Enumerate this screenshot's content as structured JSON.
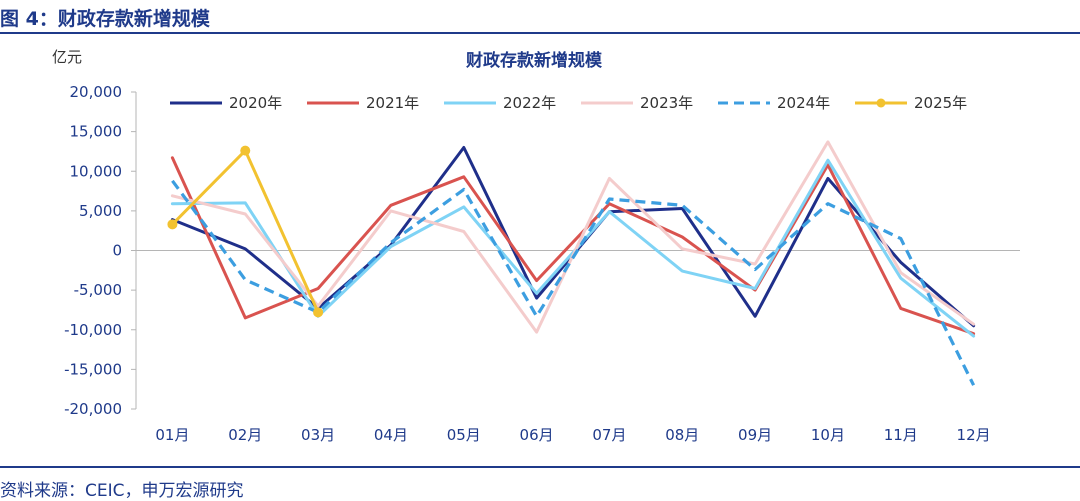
{
  "figure": {
    "title": "图 4：财政存款新增规模",
    "source": "资料来源：CEIC，申万宏源研究"
  },
  "chart_data": {
    "type": "line",
    "title": "财政存款新增规模",
    "unit_label": "亿元",
    "ylim": [
      -20000,
      20000
    ],
    "yticks": [
      20000,
      15000,
      10000,
      5000,
      0,
      -5000,
      -10000,
      -15000,
      -20000
    ],
    "ytick_labels": [
      "20,000",
      "15,000",
      "10,000",
      "5,000",
      "0",
      "-5,000",
      "-10,000",
      "-15,000",
      "-20,000"
    ],
    "categories": [
      "01月",
      "02月",
      "03月",
      "04月",
      "05月",
      "06月",
      "07月",
      "08月",
      "09月",
      "10月",
      "11月",
      "12月"
    ],
    "legend_position": "top",
    "grid": false,
    "series": [
      {
        "name": "2020年",
        "color": "#1f2f8a",
        "dash": false,
        "markers": false,
        "values": [
          3900,
          200,
          -7300,
          700,
          13000,
          -6000,
          4900,
          5300,
          -8300,
          9100,
          -1500,
          -9500
        ]
      },
      {
        "name": "2021年",
        "color": "#d9534f",
        "dash": false,
        "markers": false,
        "values": [
          11700,
          -8500,
          -4800,
          5700,
          9300,
          -3800,
          5900,
          1700,
          -5000,
          10800,
          -7300,
          -10500
        ]
      },
      {
        "name": "2022年",
        "color": "#7fd3f5",
        "dash": false,
        "markers": false,
        "values": [
          5900,
          6000,
          -8300,
          500,
          5500,
          -5400,
          4900,
          -2600,
          -4800,
          11400,
          -3500,
          -10800
        ]
      },
      {
        "name": "2023年",
        "color": "#f4cccc",
        "dash": false,
        "markers": false,
        "values": [
          6900,
          4600,
          -7000,
          5000,
          2400,
          -10300,
          9100,
          200,
          -1700,
          13700,
          -2800,
          -9300
        ]
      },
      {
        "name": "2024年",
        "color": "#3c9ee0",
        "dash": true,
        "markers": false,
        "values": [
          8800,
          -3700,
          -7800,
          1000,
          7700,
          -8300,
          6500,
          5700,
          -2400,
          5900,
          1500,
          -17000
        ]
      },
      {
        "name": "2025年",
        "color": "#f2c230",
        "dash": false,
        "markers": true,
        "values": [
          3300,
          12600,
          -7800,
          null,
          null,
          null,
          null,
          null,
          null,
          null,
          null,
          null
        ]
      }
    ]
  }
}
